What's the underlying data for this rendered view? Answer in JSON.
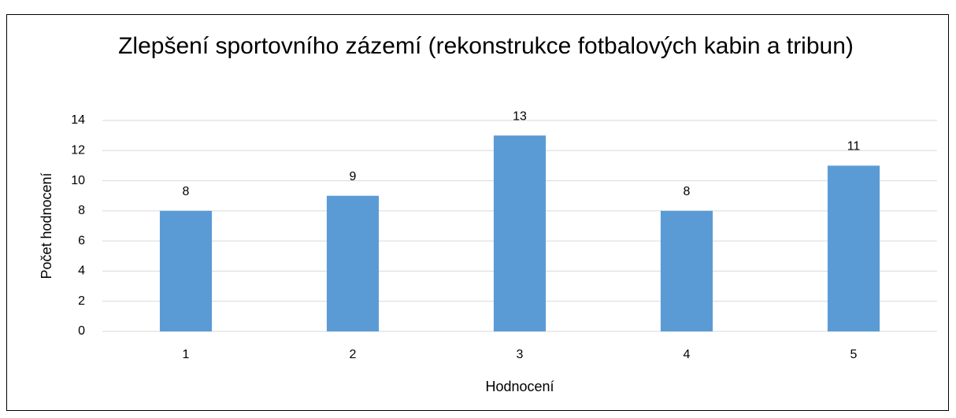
{
  "chart_data": {
    "type": "bar",
    "title": "Zlepšení sportovního zázemí (rekonstrukce fotbalových kabin a tribun)",
    "x_label": "Hodnocení",
    "y_label": "Počet hodnocení",
    "categories": [
      "1",
      "2",
      "3",
      "4",
      "5"
    ],
    "values": [
      8,
      9,
      13,
      8,
      11
    ],
    "color": "#5b9bd5",
    "ylim": [
      0,
      14
    ],
    "yticks": [
      0,
      2,
      4,
      6,
      8,
      10,
      12,
      14
    ],
    "grid": true
  }
}
